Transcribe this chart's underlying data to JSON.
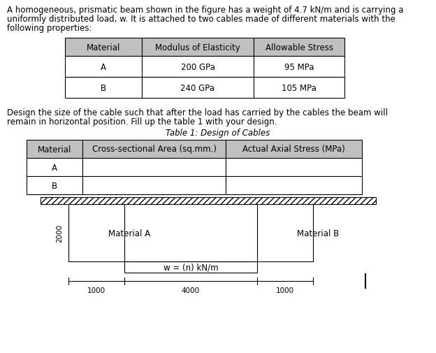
{
  "title_text": "A homogeneous, prismatic beam shown in the figure has a weight of 4.7 kN/m and is carrying a\nuniformly distributed load, w. It is attached to two cables made of different materials with the\nfollowing properties:",
  "table1_headers": [
    "Material",
    "Modulus of Elasticity",
    "Allowable Stress"
  ],
  "table1_rows": [
    [
      "A",
      "200 GPa",
      "95 MPa"
    ],
    [
      "B",
      "240 GPa",
      "105 MPa"
    ]
  ],
  "middle_text": "Design the size of the cable such that after the load has carried by the cables the beam will\nremain in horizontal position. Fill up the table 1 with your design.",
  "table2_title": "Table 1: Design of Cables",
  "table2_headers": [
    "Material",
    "Cross-sectional Area (sq.mm.)",
    "Actual Axial Stress (MPa)"
  ],
  "table2_rows": [
    [
      "A",
      "",
      ""
    ],
    [
      "B",
      "",
      ""
    ]
  ],
  "diagram_label_A": "Material A",
  "diagram_label_B": "Material B",
  "diagram_load_label": "w = (n) kN/m",
  "dim_left": "1000",
  "dim_mid": "4000",
  "dim_right": "1000",
  "dim_height_label": "2000",
  "header_color": "#c0c0c0",
  "bg_color": "#ffffff",
  "font_size": 8.5,
  "title_font_size": 8.5
}
